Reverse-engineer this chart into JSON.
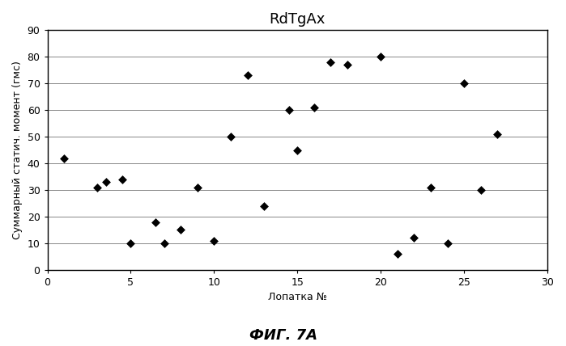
{
  "title": "RdTgAx",
  "xlabel": "Лопатка №",
  "ylabel": "Суммарный статич. момент (гмс)",
  "caption": "ФИГ. 7А",
  "xlim": [
    0,
    30
  ],
  "ylim": [
    0,
    90
  ],
  "xticks": [
    0,
    5,
    10,
    15,
    20,
    25,
    30
  ],
  "yticks": [
    0,
    10,
    20,
    30,
    40,
    50,
    60,
    70,
    80,
    90
  ],
  "x": [
    1,
    3,
    3.5,
    4.5,
    5,
    6.5,
    7,
    8,
    9,
    10,
    11,
    12,
    13,
    14.5,
    15,
    16,
    17,
    18,
    20,
    21,
    22,
    23,
    24,
    25,
    26,
    27
  ],
  "y": [
    42,
    31,
    33,
    34,
    10,
    18,
    10,
    15,
    31,
    11,
    50,
    73,
    24,
    60,
    45,
    61,
    78,
    77,
    80,
    6,
    12,
    31,
    10,
    70,
    30,
    51
  ],
  "marker_color": "black",
  "marker_size": 5,
  "bg_color": "white",
  "grid_color": "#888888",
  "title_fontsize": 13,
  "label_fontsize": 9,
  "tick_fontsize": 9,
  "caption_fontsize": 13
}
